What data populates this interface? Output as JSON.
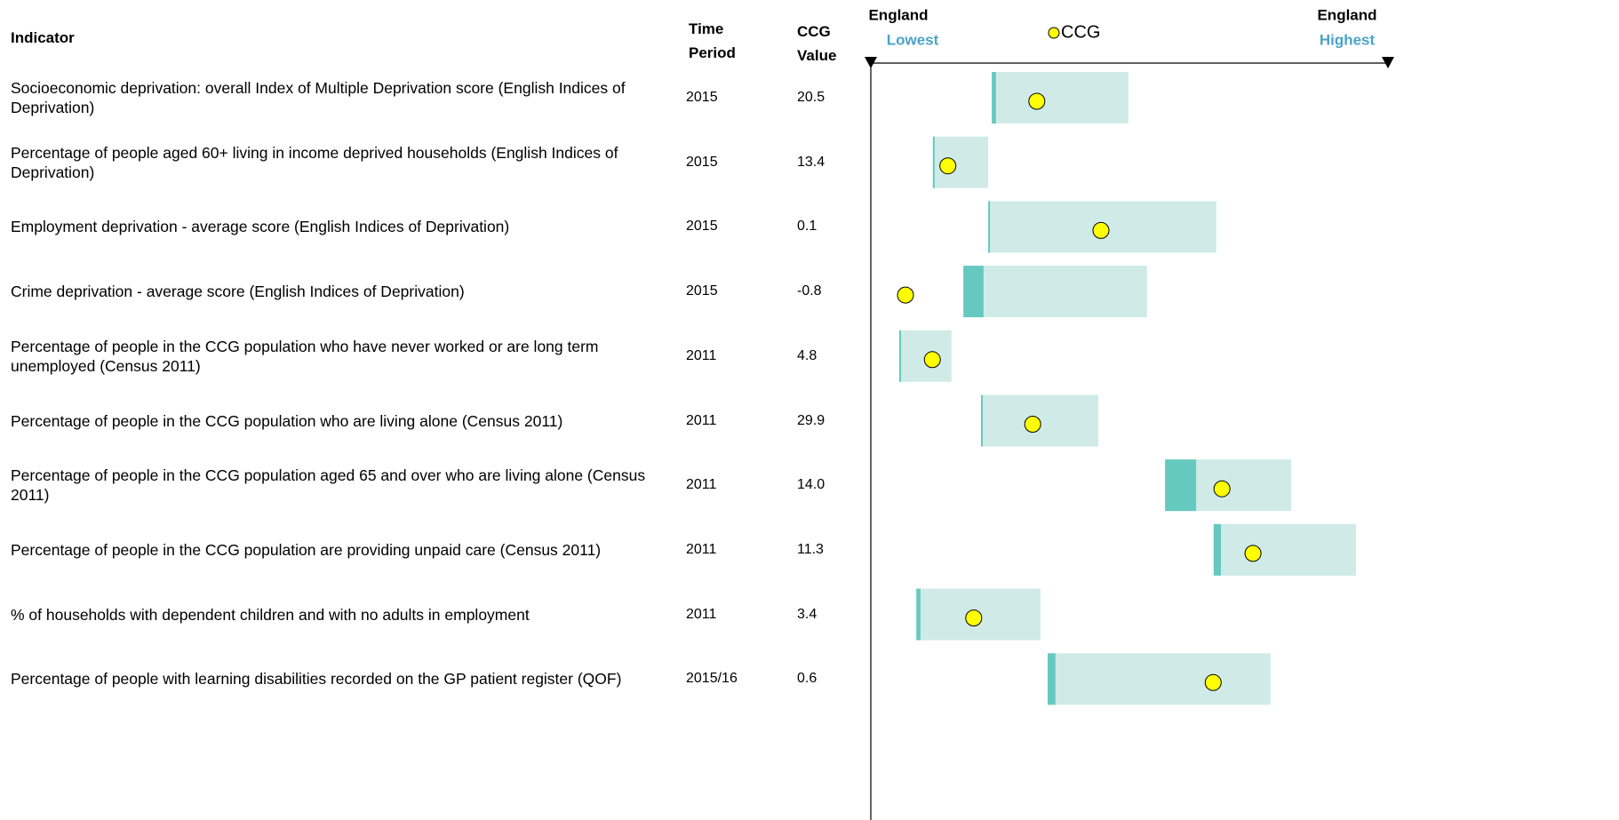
{
  "header": {
    "indicator": "Indicator",
    "time_period": "Time Period",
    "ccg_value": "CCG Value",
    "england_left": "England",
    "lowest": "Lowest",
    "legend": "CCG",
    "england_right": "England",
    "highest": "Highest"
  },
  "rows": [
    {
      "indicator": "Socioeconomic deprivation: overall Index of Multiple Deprivation score (English Indices of Deprivation)",
      "period": "2015",
      "value": "20.5"
    },
    {
      "indicator": "Percentage of people aged 60+ living in income deprived households (English Indices of Deprivation)",
      "period": "2015",
      "value": "13.4"
    },
    {
      "indicator": "Employment deprivation - average score (English Indices of Deprivation)",
      "period": "2015",
      "value": "0.1"
    },
    {
      "indicator": "Crime deprivation - average score (English Indices of Deprivation)",
      "period": "2015",
      "value": "-0.8"
    },
    {
      "indicator": "Percentage of people in the CCG population who have never worked or are long term unemployed (Census 2011)",
      "period": "2011",
      "value": "4.8"
    },
    {
      "indicator": "Percentage of people in the CCG population who are living alone (Census 2011)",
      "period": "2011",
      "value": "29.9"
    },
    {
      "indicator": "Percentage of people in the CCG population aged 65 and over who are living alone (Census 2011)",
      "period": "2011",
      "value": "14.0"
    },
    {
      "indicator": "Percentage of people in the CCG population are providing unpaid care (Census 2011)",
      "period": "2011",
      "value": "11.3"
    },
    {
      "indicator": "% of households with dependent children and with no adults in employment",
      "period": "2011",
      "value": "3.4"
    },
    {
      "indicator": "Percentage of people with learning disabilities recorded  on the GP patient register (QOF)",
      "period": "2015/16",
      "value": "0.6"
    }
  ],
  "spine": {
    "xlim": [
      0,
      100
    ],
    "band_color": "#d0ebe7",
    "dark_color": "#66c9bf",
    "marker_color": "#ffff00",
    "marks": [
      {
        "low": 23.4,
        "mid": 24.2,
        "high": 49.8,
        "ccg": 32.1
      },
      {
        "low": 12.0,
        "mid": 12.0,
        "high": 22.7,
        "ccg": 14.9
      },
      {
        "low": 22.7,
        "mid": 22.7,
        "high": 66.8,
        "ccg": 44.5
      },
      {
        "low": 17.9,
        "mid": 21.8,
        "high": 53.4,
        "ccg": 6.7
      },
      {
        "low": 5.5,
        "mid": 5.8,
        "high": 15.6,
        "ccg": 11.9
      },
      {
        "low": 21.3,
        "mid": 21.6,
        "high": 44.0,
        "ccg": 31.3
      },
      {
        "low": 56.9,
        "mid": 62.9,
        "high": 81.3,
        "ccg": 67.9
      },
      {
        "low": 66.3,
        "mid": 67.7,
        "high": 93.8,
        "ccg": 73.9
      },
      {
        "low": 8.8,
        "mid": 9.6,
        "high": 32.8,
        "ccg": 19.9
      },
      {
        "low": 34.2,
        "mid": 35.7,
        "high": 77.3,
        "ccg": 66.2
      }
    ]
  }
}
